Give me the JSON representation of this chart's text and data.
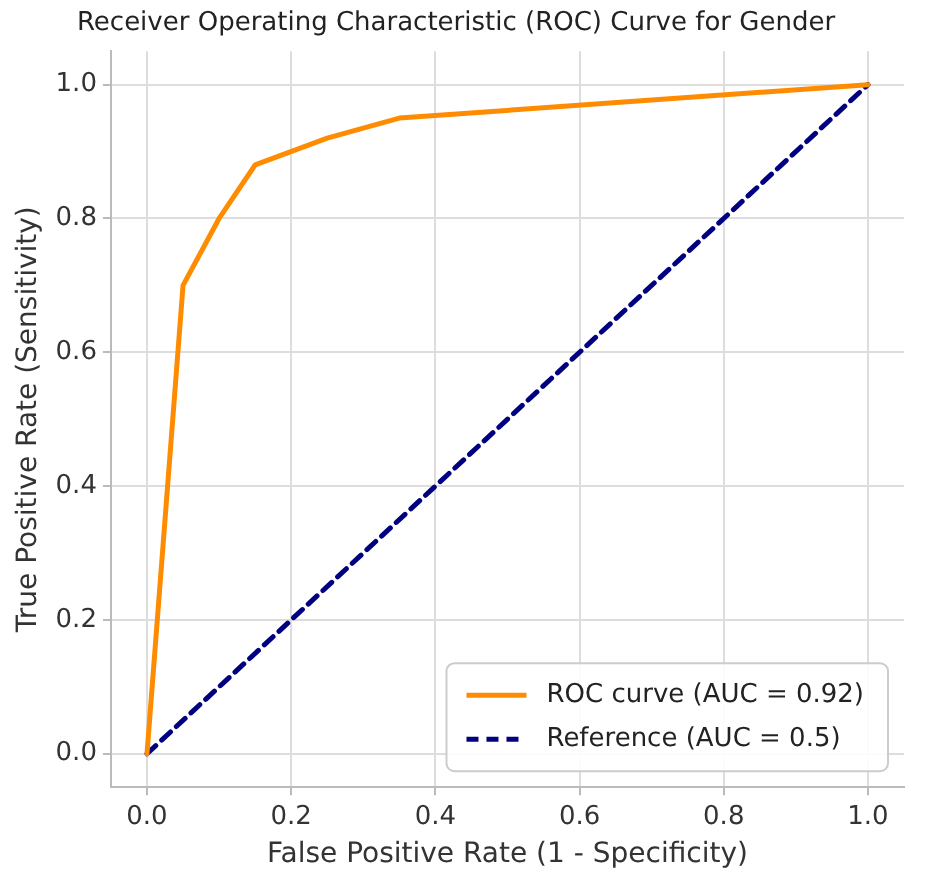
{
  "chart_data": {
    "type": "line",
    "title": "Receiver Operating Characteristic (ROC) Curve for Gender",
    "xlabel": "False Positive Rate (1 - Specificity)",
    "ylabel": "True Positive Rate (Sensitivity)",
    "series": [
      {
        "name": "ROC curve (AUC = 0.92)",
        "color": "#ff8c00",
        "x": [
          0,
          0.05,
          0.1,
          0.15,
          0.25,
          0.35,
          1
        ],
        "values": [
          0,
          0.7,
          0.8,
          0.88,
          0.92,
          0.95,
          1
        ],
        "line_style": "solid"
      },
      {
        "name": "Reference (AUC = 0.5)",
        "color": "#000080",
        "x": [
          0,
          1
        ],
        "values": [
          0,
          1
        ],
        "line_style": "dashed"
      }
    ],
    "xlim": [
      -0.05,
      1.05
    ],
    "ylim": [
      -0.05,
      1.05
    ],
    "xticks": [
      {
        "value": 0,
        "label": "0.0"
      },
      {
        "value": 0.2,
        "label": "0.2"
      },
      {
        "value": 0.4,
        "label": "0.4"
      },
      {
        "value": 0.6,
        "label": "0.6"
      },
      {
        "value": 0.8,
        "label": "0.8"
      },
      {
        "value": 1,
        "label": "1.0"
      }
    ],
    "yticks": [
      {
        "value": 0,
        "label": "0.0"
      },
      {
        "value": 0.2,
        "label": "0.2"
      },
      {
        "value": 0.4,
        "label": "0.4"
      },
      {
        "value": 0.6,
        "label": "0.6"
      },
      {
        "value": 0.8,
        "label": "0.8"
      },
      {
        "value": 1,
        "label": "1.0"
      }
    ],
    "grid": true,
    "legend": "bottom right",
    "marker": "none"
  }
}
